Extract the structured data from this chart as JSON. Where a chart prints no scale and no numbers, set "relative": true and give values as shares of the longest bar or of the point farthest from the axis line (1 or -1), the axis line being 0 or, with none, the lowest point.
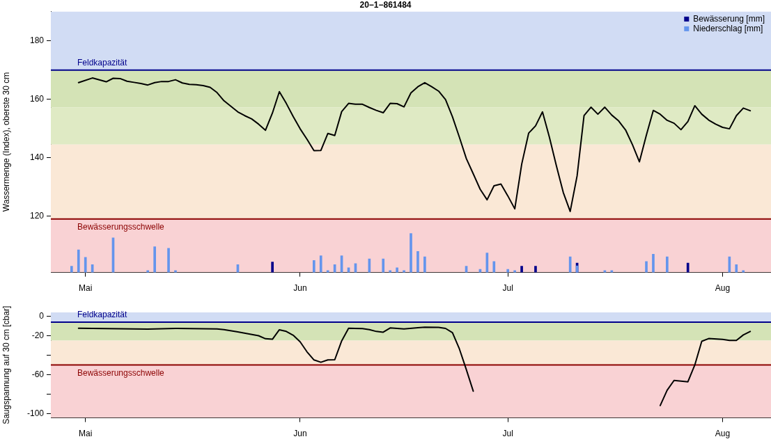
{
  "chart_data": [
    {
      "type": "line",
      "title": "20−1−861484",
      "ylabel": "Wassermenge (Index), oberste 30 cm",
      "xlim": [
        "--04-26",
        "--08-08"
      ],
      "xticks": [
        {
          "value": "--05-01",
          "label": "Mai"
        },
        {
          "value": "--06-01",
          "label": "Jun"
        },
        {
          "value": "--07-01",
          "label": "Jul"
        },
        {
          "value": "--08-01",
          "label": "Aug"
        }
      ],
      "ylim": [
        100.7,
        190.1
      ],
      "yticks": [
        120,
        140,
        160,
        180
      ],
      "grid": false,
      "color": "#000000",
      "x": [
        "--04-30",
        "--05-02",
        "--05-04",
        "--05-05",
        "--05-06",
        "--05-07",
        "--05-08",
        "--05-09",
        "--05-10",
        "--05-11",
        "--05-12",
        "--05-13",
        "--05-14",
        "--05-15",
        "--05-16",
        "--05-17",
        "--05-18",
        "--05-19",
        "--05-20",
        "--05-21",
        "--05-23",
        "--05-24",
        "--05-25",
        "--05-26",
        "--05-27",
        "--05-28",
        "--05-29",
        "--05-30",
        "--05-31",
        "--06-01",
        "--06-02",
        "--06-03",
        "--06-04",
        "--06-05",
        "--06-06",
        "--06-07",
        "--06-08",
        "--06-09",
        "--06-10",
        "--06-11",
        "--06-12",
        "--06-13",
        "--06-14",
        "--06-15",
        "--06-16",
        "--06-17",
        "--06-18",
        "--06-19",
        "--06-20",
        "--06-21",
        "--06-22",
        "--06-23",
        "--06-24",
        "--06-25",
        "--06-26",
        "--06-27",
        "--06-28",
        "--06-29",
        "--06-30",
        "--07-01",
        "--07-02",
        "--07-03",
        "--07-04",
        "--07-05",
        "--07-06",
        "--07-07",
        "--07-08",
        "--07-09",
        "--07-10",
        "--07-11",
        "--07-12",
        "--07-13",
        "--07-14",
        "--07-15",
        "--07-16",
        "--07-17",
        "--07-18",
        "--07-19",
        "--07-20",
        "--07-21",
        "--07-22",
        "--07-23",
        "--07-24",
        "--07-25",
        "--07-26",
        "--07-27",
        "--07-28",
        "--07-29",
        "--07-30",
        "--07-31",
        "--08-01",
        "--08-02",
        "--08-03",
        "--08-04",
        "--08-05"
      ],
      "values": [
        165.7,
        167.3,
        166.0,
        167.2,
        167.1,
        166.2,
        165.8,
        165.4,
        164.9,
        165.7,
        166.1,
        166.1,
        166.7,
        165.6,
        165.1,
        165.0,
        164.7,
        164.1,
        162.3,
        159.5,
        155.7,
        154.4,
        153.3,
        151.5,
        149.4,
        155.3,
        162.6,
        158.6,
        154.1,
        149.9,
        146.3,
        142.4,
        142.5,
        148.3,
        147.6,
        155.8,
        158.6,
        158.3,
        158.3,
        157.2,
        156.2,
        155.4,
        158.6,
        158.5,
        157.4,
        162.2,
        164.3,
        165.7,
        164.3,
        162.8,
        159.9,
        154.0,
        147.0,
        139.7,
        134.5,
        129.2,
        125.6,
        130.4,
        131.0,
        126.9,
        122.5,
        137.8,
        148.4,
        150.9,
        155.7,
        147.0,
        137.3,
        128.1,
        121.6,
        133.8,
        154.4,
        157.3,
        154.9,
        157.3,
        154.6,
        152.6,
        149.5,
        144.4,
        138.6,
        147.7,
        156.2,
        154.9,
        152.8,
        151.8,
        149.6,
        152.4,
        157.8,
        154.9,
        152.9,
        151.5,
        150.4,
        149.9,
        154.4,
        157.0,
        156.1
      ],
      "bands": [
        {
          "axis": "y",
          "from": 170,
          "to": 190.1,
          "color": "#d1dcf4"
        },
        {
          "axis": "y",
          "from": 157.25,
          "to": 170,
          "color": "#d4e3b6"
        },
        {
          "axis": "y",
          "from": 144.5,
          "to": 157.25,
          "color": "#dfeac4"
        },
        {
          "axis": "y",
          "from": 119,
          "to": 144.5,
          "color": "#fae8d6"
        },
        {
          "axis": "y",
          "from": 100.7,
          "to": 119,
          "color": "#f9d2d4"
        }
      ],
      "ref_lines": [
        {
          "axis": "y",
          "value": 170,
          "label": "Feldkapazität",
          "color": "#00008b"
        },
        {
          "axis": "y",
          "value": 119,
          "label": "Bewässerungsschwelle",
          "color": "#8b0000"
        }
      ]
    },
    {
      "type": "bar",
      "relative": true,
      "legend": "top right",
      "tick_labels": false,
      "xlim": [
        "--04-26",
        "--08-08"
      ],
      "series": [
        {
          "name": "Bewässerung [mm]",
          "color": "#00008b",
          "x": [
            "--05-28",
            "--07-03",
            "--07-05",
            "--07-11",
            "--07-27"
          ],
          "values": [
            0.27,
            0.16,
            0.16,
            0.24,
            0.24
          ]
        },
        {
          "name": "Niederschlag [mm]",
          "color": "#6495ed",
          "x": [
            "--04-29",
            "--04-30",
            "--05-01",
            "--05-02",
            "--05-05",
            "--05-10",
            "--05-11",
            "--05-13",
            "--05-14",
            "--05-23",
            "--06-03",
            "--06-04",
            "--06-05",
            "--06-06",
            "--06-07",
            "--06-08",
            "--06-09",
            "--06-11",
            "--06-13",
            "--06-14",
            "--06-15",
            "--06-16",
            "--06-17",
            "--06-18",
            "--06-19",
            "--06-25",
            "--06-27",
            "--06-28",
            "--06-29",
            "--07-01",
            "--07-02",
            "--07-10",
            "--07-11",
            "--07-15",
            "--07-16",
            "--07-21",
            "--07-22",
            "--07-24",
            "--08-02",
            "--08-03",
            "--08-04"
          ],
          "values": [
            0.16,
            0.58,
            0.39,
            0.2,
            0.89,
            0.05,
            0.66,
            0.62,
            0.05,
            0.2,
            0.31,
            0.43,
            0.05,
            0.2,
            0.43,
            0.12,
            0.23,
            0.35,
            0.35,
            0.05,
            0.12,
            0.05,
            1,
            0.54,
            0.4,
            0.16,
            0.08,
            0.5,
            0.28,
            0.08,
            0.05,
            0.4,
            0.17,
            0.05,
            0.05,
            0.28,
            0.47,
            0.4,
            0.4,
            0.2,
            0.05
          ]
        }
      ]
    },
    {
      "type": "line",
      "ylabel": "Saugspannung auf 30 cm [cbar]",
      "xlim": [
        "--04-26",
        "--08-08"
      ],
      "xticks": [
        {
          "value": "--05-01",
          "label": "Mai"
        },
        {
          "value": "--06-01",
          "label": "Jun"
        },
        {
          "value": "--07-01",
          "label": "Jul"
        },
        {
          "value": "--08-01",
          "label": "Aug"
        }
      ],
      "ylim": [
        -104.2,
        3.9
      ],
      "yticks": [
        0,
        -20,
        {
          "value": -40,
          "label": null
        },
        -60,
        {
          "value": -80,
          "label": null
        },
        -100
      ],
      "grid": false,
      "color": "#000000",
      "x": [
        "--04-30",
        "--05-10",
        "--05-14",
        "--05-20",
        "--05-21",
        "--05-23",
        "--05-26",
        "--05-27",
        "--05-28",
        "--05-29",
        "--05-30",
        "--05-31",
        "--06-01",
        "--06-02",
        "--06-03",
        "--06-04",
        "--06-05",
        "--06-06",
        "--06-07",
        "--06-08",
        "--06-10",
        "--06-11",
        "--06-12",
        "--06-13",
        "--06-14",
        "--06-16",
        "--06-18",
        "--06-19",
        "--06-21",
        "--06-22",
        "--06-23",
        "--06-24",
        "--06-25",
        "--06-26",
        "--06-27",
        "--07-22",
        "--07-23",
        "--07-24",
        "--07-25",
        "--07-27",
        "--07-28",
        "--07-29",
        "--07-30",
        "--08-01",
        "--08-02",
        "--08-03",
        "--08-04",
        "--08-05"
      ],
      "values": [
        -12.3,
        -13.2,
        -12.5,
        -13.0,
        -13.7,
        -16.1,
        -20.0,
        -23.1,
        -23.6,
        -13.9,
        -15.6,
        -19.5,
        -26.2,
        -36.6,
        -44.8,
        -47.2,
        -44.8,
        -44.6,
        -25.3,
        -12.3,
        -12.7,
        -13.7,
        -15.6,
        -16.4,
        -12.0,
        -13.0,
        -11.8,
        -11.3,
        -11.5,
        -12.5,
        -16.8,
        -33.5,
        -54.7,
        -76.8,
        null,
        null,
        -91.5,
        -75.9,
        -65.8,
        -67.2,
        -49.9,
        -25.7,
        -22.9,
        -23.8,
        -24.8,
        -24.8,
        -19.2,
        -15.6
      ],
      "bands": [
        {
          "axis": "y",
          "from": -6,
          "to": 3.9,
          "color": "#d1dcf4"
        },
        {
          "axis": "y",
          "from": -25,
          "to": -6,
          "color": "#d4e3b6"
        },
        {
          "axis": "y",
          "from": -50,
          "to": -25,
          "color": "#fae8d6"
        },
        {
          "axis": "y",
          "from": -104.2,
          "to": -50,
          "color": "#f9d2d4"
        }
      ],
      "ref_lines": [
        {
          "axis": "y",
          "value": -6,
          "label": "Feldkapazität",
          "color": "#00008b"
        },
        {
          "axis": "y",
          "value": -50,
          "label": "Bewässerungsschwelle",
          "color": "#8b0000"
        }
      ]
    }
  ]
}
